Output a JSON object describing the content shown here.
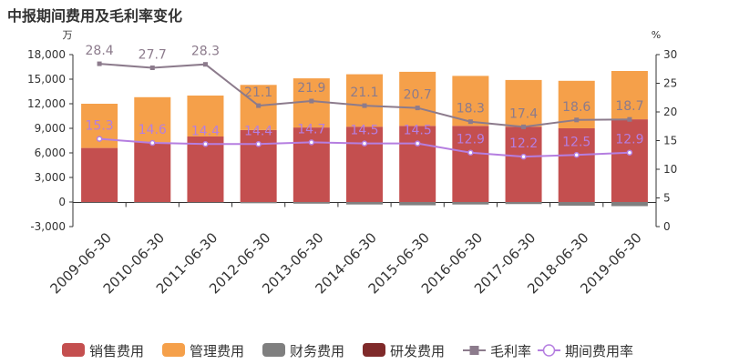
{
  "chart_data": {
    "type": "bar+line",
    "title": "中报期间费用及毛利率变化",
    "left_unit": "万",
    "right_unit": "%",
    "categories": [
      "2009-06-30",
      "2010-06-30",
      "2011-06-30",
      "2012-06-30",
      "2013-06-30",
      "2014-06-30",
      "2015-06-30",
      "2016-06-30",
      "2017-06-30",
      "2018-06-30",
      "2019-06-30"
    ],
    "left_axis": {
      "min": -3000,
      "max": 18000,
      "ticks": [
        -3000,
        0,
        3000,
        6000,
        9000,
        12000,
        15000,
        18000
      ]
    },
    "right_axis": {
      "min": 0,
      "max": 30,
      "ticks": [
        0,
        5,
        10,
        15,
        20,
        25,
        30
      ]
    },
    "bar_series": [
      {
        "name": "销售费用",
        "color": "#c44f4f",
        "values": [
          6600,
          7300,
          8000,
          8800,
          9100,
          9200,
          9300,
          9300,
          9200,
          9000,
          10100
        ]
      },
      {
        "name": "管理费用",
        "color": "#f5a04a",
        "values": [
          5400,
          5500,
          5000,
          5500,
          6000,
          6400,
          6600,
          6100,
          5700,
          5800,
          5900
        ]
      },
      {
        "name": "财务费用",
        "color": "#7f7f7f",
        "values": [
          -50,
          -80,
          -60,
          -150,
          -200,
          -300,
          -400,
          -300,
          -250,
          -450,
          -500
        ]
      },
      {
        "name": "研发费用",
        "color": "#7f2a2a",
        "values": [
          0,
          0,
          0,
          0,
          0,
          0,
          0,
          0,
          0,
          0,
          0
        ]
      }
    ],
    "line_series": [
      {
        "name": "毛利率",
        "color": "#8c7b8c",
        "marker": "square",
        "values": [
          28.4,
          27.7,
          28.3,
          21.1,
          21.9,
          21.1,
          20.7,
          18.3,
          17.4,
          18.6,
          18.7
        ]
      },
      {
        "name": "期间费用率",
        "color": "#b57ee0",
        "marker": "circle",
        "values": [
          15.3,
          14.6,
          14.4,
          14.4,
          14.7,
          14.5,
          14.5,
          12.9,
          12.2,
          12.5,
          12.9
        ]
      }
    ]
  }
}
